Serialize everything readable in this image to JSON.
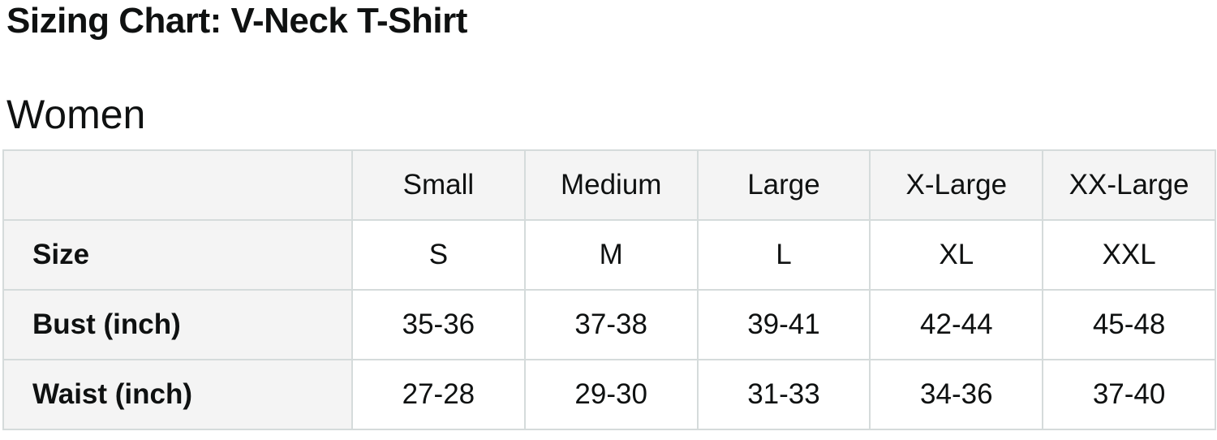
{
  "header": {
    "title": "Sizing Chart: V-Neck T-Shirt",
    "subtitle": "Women"
  },
  "chart_data": {
    "type": "table",
    "title": "Sizing Chart: V-Neck T-Shirt",
    "subtitle": "Women",
    "columns": [
      "",
      "Small",
      "Medium",
      "Large",
      "X-Large",
      "XX-Large"
    ],
    "rows": [
      [
        "Size",
        "S",
        "M",
        "L",
        "XL",
        "XXL"
      ],
      [
        "Bust (inch)",
        "35-36",
        "37-38",
        "39-41",
        "42-44",
        "45-48"
      ],
      [
        "Waist (inch)",
        "27-28",
        "29-30",
        "31-33",
        "34-36",
        "37-40"
      ]
    ],
    "layout": {
      "header_row_background": "#f4f4f4",
      "label_column_background": "#f4f4f4",
      "cell_background": "#ffffff",
      "border_color": "#d5dbdb",
      "text_color": "#0f1111"
    }
  }
}
